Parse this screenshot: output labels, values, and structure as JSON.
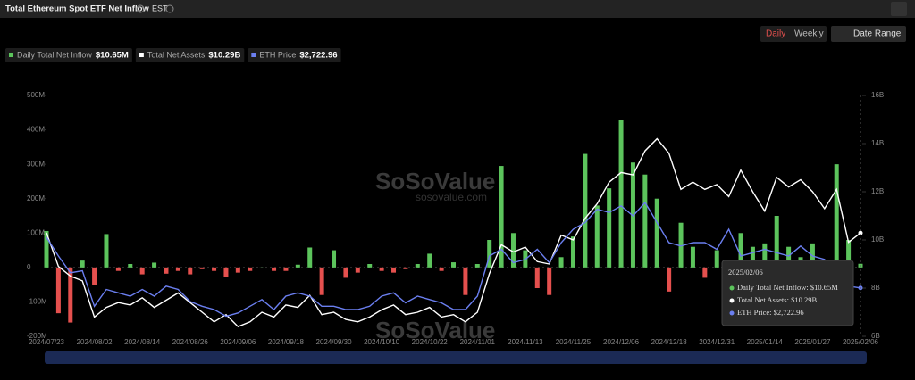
{
  "header": {
    "title": "Total Ethereum Spot ETF Net Inflow",
    "timezone": "EST",
    "buttons": [
      "Daily",
      "Weekly",
      "Date Range"
    ]
  },
  "watermark": {
    "brand": "SoSoValue",
    "site": "sosovalue.com"
  },
  "chart_data": {
    "type": "combo",
    "categories": [
      "2024/07/23",
      null,
      null,
      null,
      "2024/08/02",
      null,
      null,
      null,
      "2024/08/14",
      null,
      null,
      null,
      "2024/08/26",
      null,
      null,
      null,
      "2024/09/06",
      null,
      null,
      null,
      "2024/09/18",
      null,
      null,
      null,
      "2024/09/30",
      null,
      null,
      null,
      "2024/10/10",
      null,
      null,
      null,
      "2024/10/22",
      null,
      null,
      null,
      "2024/11/01",
      null,
      null,
      null,
      "2024/11/13",
      null,
      null,
      null,
      "2024/11/25",
      null,
      null,
      null,
      "2024/12/06",
      null,
      null,
      null,
      "2024/12/18",
      null,
      null,
      null,
      "2024/12/31",
      null,
      null,
      null,
      "2025/01/14",
      null,
      null,
      null,
      "2025/01/27",
      null,
      null,
      null,
      "2025/02/06"
    ],
    "series": [
      {
        "name": "Daily Total Net Inflow",
        "type": "bar",
        "axis": "y",
        "color": "#5cc45c",
        "negative_color": "#e5504e",
        "values": [
          106,
          -133,
          -160,
          20,
          -50,
          97,
          -10,
          10,
          -20,
          14,
          -18,
          -10,
          -20,
          -5,
          -10,
          -28,
          -15,
          -10,
          0,
          -10,
          -10,
          8,
          58,
          -80,
          50,
          -30,
          -15,
          10,
          -10,
          -15,
          -5,
          10,
          40,
          -10,
          15,
          -80,
          10,
          80,
          295,
          100,
          50,
          -60,
          -80,
          30,
          90,
          330,
          180,
          230,
          428,
          305,
          270,
          200,
          -70,
          130,
          60,
          -30,
          50,
          -70,
          100,
          60,
          70,
          150,
          60,
          30,
          70,
          -20,
          300,
          80,
          10.65
        ]
      },
      {
        "name": "Total Net Assets",
        "type": "line",
        "axis": "y2",
        "color": "#ffffff",
        "values": [
          10.3,
          8.9,
          8.5,
          8.3,
          6.8,
          7.2,
          7.4,
          7.3,
          7.6,
          7.2,
          7.5,
          7.8,
          7.4,
          7.0,
          6.6,
          6.9,
          6.4,
          6.6,
          7.0,
          6.8,
          7.3,
          7.2,
          7.7,
          6.9,
          7.0,
          6.7,
          6.6,
          6.8,
          7.1,
          7.3,
          6.9,
          7.0,
          7.2,
          6.8,
          6.9,
          6.6,
          7.0,
          8.6,
          9.8,
          9.5,
          9.7,
          9.1,
          9.0,
          10.2,
          10.0,
          10.9,
          11.5,
          12.4,
          12.8,
          12.7,
          13.7,
          14.2,
          13.6,
          12.1,
          12.4,
          12.1,
          12.3,
          11.8,
          12.9,
          12.0,
          11.2,
          12.6,
          12.2,
          12.5,
          12.0,
          11.3,
          12.1,
          9.9,
          10.29
        ]
      },
      {
        "name": "ETH Price",
        "type": "line",
        "axis": "y3",
        "color": "#6b7ff0",
        "values": [
          3480,
          3200,
          2950,
          2980,
          2450,
          2700,
          2650,
          2600,
          2700,
          2600,
          2750,
          2700,
          2520,
          2450,
          2400,
          2300,
          2350,
          2450,
          2550,
          2400,
          2600,
          2650,
          2600,
          2450,
          2450,
          2400,
          2400,
          2450,
          2600,
          2650,
          2500,
          2600,
          2550,
          2500,
          2400,
          2400,
          2600,
          3200,
          3300,
          3100,
          3150,
          3300,
          3100,
          3400,
          3600,
          3700,
          3900,
          3850,
          3950,
          3800,
          4000,
          3700,
          3400,
          3350,
          3400,
          3400,
          3300,
          3600,
          3200,
          3250,
          3300,
          3250,
          3200,
          3350,
          3200,
          3150,
          2800,
          2750,
          2722.96
        ]
      }
    ],
    "legend_values": [
      "$10.65M",
      "$10.29B",
      "$2,722.96"
    ],
    "ylim": [
      -200,
      500
    ],
    "yticks": [
      {
        "value": -200,
        "label": "-200M"
      },
      {
        "value": -100,
        "label": "-100M"
      },
      0,
      {
        "value": 100,
        "label": "100M"
      },
      {
        "value": 200,
        "label": "200M"
      },
      {
        "value": 300,
        "label": "300M"
      },
      {
        "value": 400,
        "label": "400M"
      },
      {
        "value": 500,
        "label": "500M"
      }
    ],
    "y2lim": [
      6,
      16
    ],
    "y2ticks": [
      {
        "value": 6,
        "label": "6B"
      },
      {
        "value": 8,
        "label": "8B"
      },
      {
        "value": 10,
        "label": "10B"
      },
      {
        "value": 12,
        "label": "12B"
      },
      {
        "value": 14,
        "label": "14B"
      },
      {
        "value": 16,
        "label": "16B"
      }
    ],
    "y3lim": [
      2000,
      5600
    ],
    "tooltip": {
      "date": "2025/02/06",
      "lines": [
        "Daily Total Net Inflow: $10.65M",
        "Total Net Assets: $10.29B",
        "ETH Price: $2,722.96"
      ]
    }
  }
}
